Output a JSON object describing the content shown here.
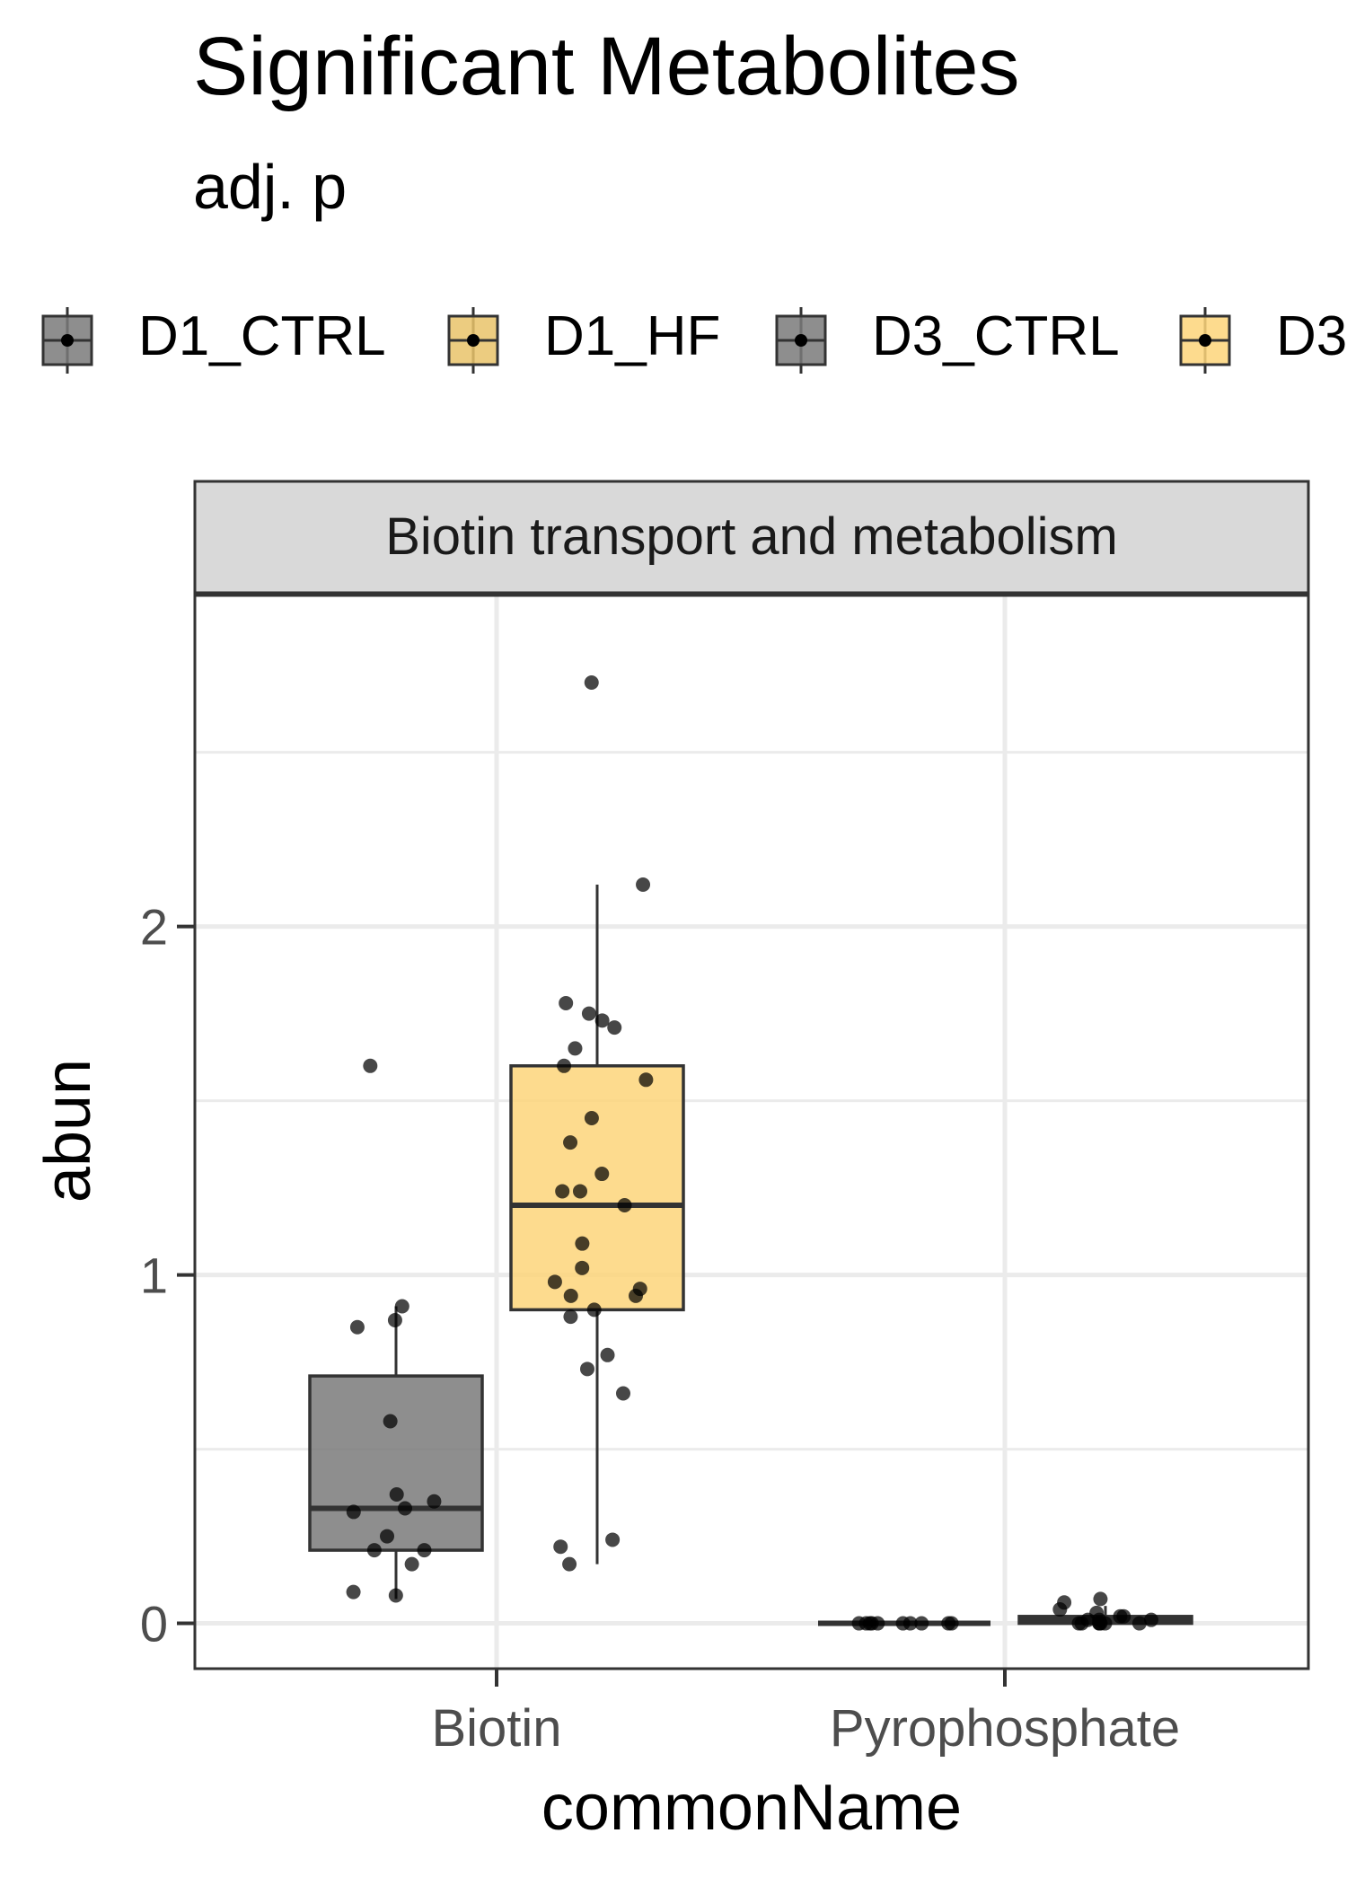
{
  "chart_data": {
    "type": "box",
    "title": "Significant Metabolites",
    "subtitle": "adj. p",
    "facet_label": "Biotin transport and metabolism",
    "xlabel": "commonName",
    "ylabel": "abun",
    "categories": [
      "Biotin",
      "Pyrophosphate"
    ],
    "ylim": [
      -0.13,
      2.95
    ],
    "yticks": [
      0,
      1,
      2
    ],
    "grid": true,
    "legend_position": "top",
    "legend": [
      {
        "name": "D1_CTRL",
        "color": "#7a7a7a"
      },
      {
        "name": "D1_HF",
        "color": "#e9c36a"
      },
      {
        "name": "D3_CTRL",
        "color": "#7a7a7a"
      },
      {
        "name": "D3",
        "color": "#fdd57a"
      }
    ],
    "series": [
      {
        "name": "D1_CTRL",
        "color": "#7a7a7a",
        "boxes": [
          {
            "category": "Biotin",
            "min": 0.07,
            "q1": 0.21,
            "median": 0.33,
            "q3": 0.71,
            "max": 0.91
          },
          {
            "category": "Pyrophosphate",
            "min": 0.0,
            "q1": 0.0,
            "median": 0.0,
            "q3": 0.0,
            "max": 0.0
          }
        ],
        "points": [
          {
            "category": "Biotin",
            "values": [
              0.87,
              0.91,
              0.85,
              1.6,
              0.58,
              0.37,
              0.32,
              0.35,
              0.33,
              0.25,
              0.21,
              0.21,
              0.17,
              0.09,
              0.08
            ]
          },
          {
            "category": "Pyrophosphate",
            "values": [
              0.0,
              0.0,
              0.0,
              0.0,
              0.0,
              0.0,
              0.0,
              0.0,
              0.0,
              0.0
            ]
          }
        ]
      },
      {
        "name": "D1_HF",
        "color": "#fdd57a",
        "boxes": [
          {
            "category": "Biotin",
            "min": 0.17,
            "q1": 0.9,
            "median": 1.2,
            "q3": 1.6,
            "max": 2.12
          },
          {
            "category": "Pyrophosphate",
            "min": 0.0,
            "q1": 0.0,
            "median": 0.01,
            "q3": 0.02,
            "max": 0.05
          }
        ],
        "points": [
          {
            "category": "Biotin",
            "values": [
              2.7,
              2.12,
              1.78,
              1.75,
              1.73,
              1.71,
              1.65,
              1.6,
              1.56,
              1.45,
              1.38,
              1.29,
              1.24,
              1.24,
              1.2,
              1.09,
              1.02,
              0.98,
              0.96,
              0.94,
              0.94,
              0.9,
              0.88,
              0.77,
              0.73,
              0.66,
              0.24,
              0.22,
              0.17
            ]
          },
          {
            "category": "Pyrophosphate",
            "values": [
              0.07,
              0.06,
              0.04,
              0.03,
              0.02,
              0.02,
              0.01,
              0.01,
              0.01,
              0.0,
              0.0,
              0.0,
              0.0,
              0.0,
              0.0,
              0.0
            ]
          }
        ]
      }
    ]
  }
}
